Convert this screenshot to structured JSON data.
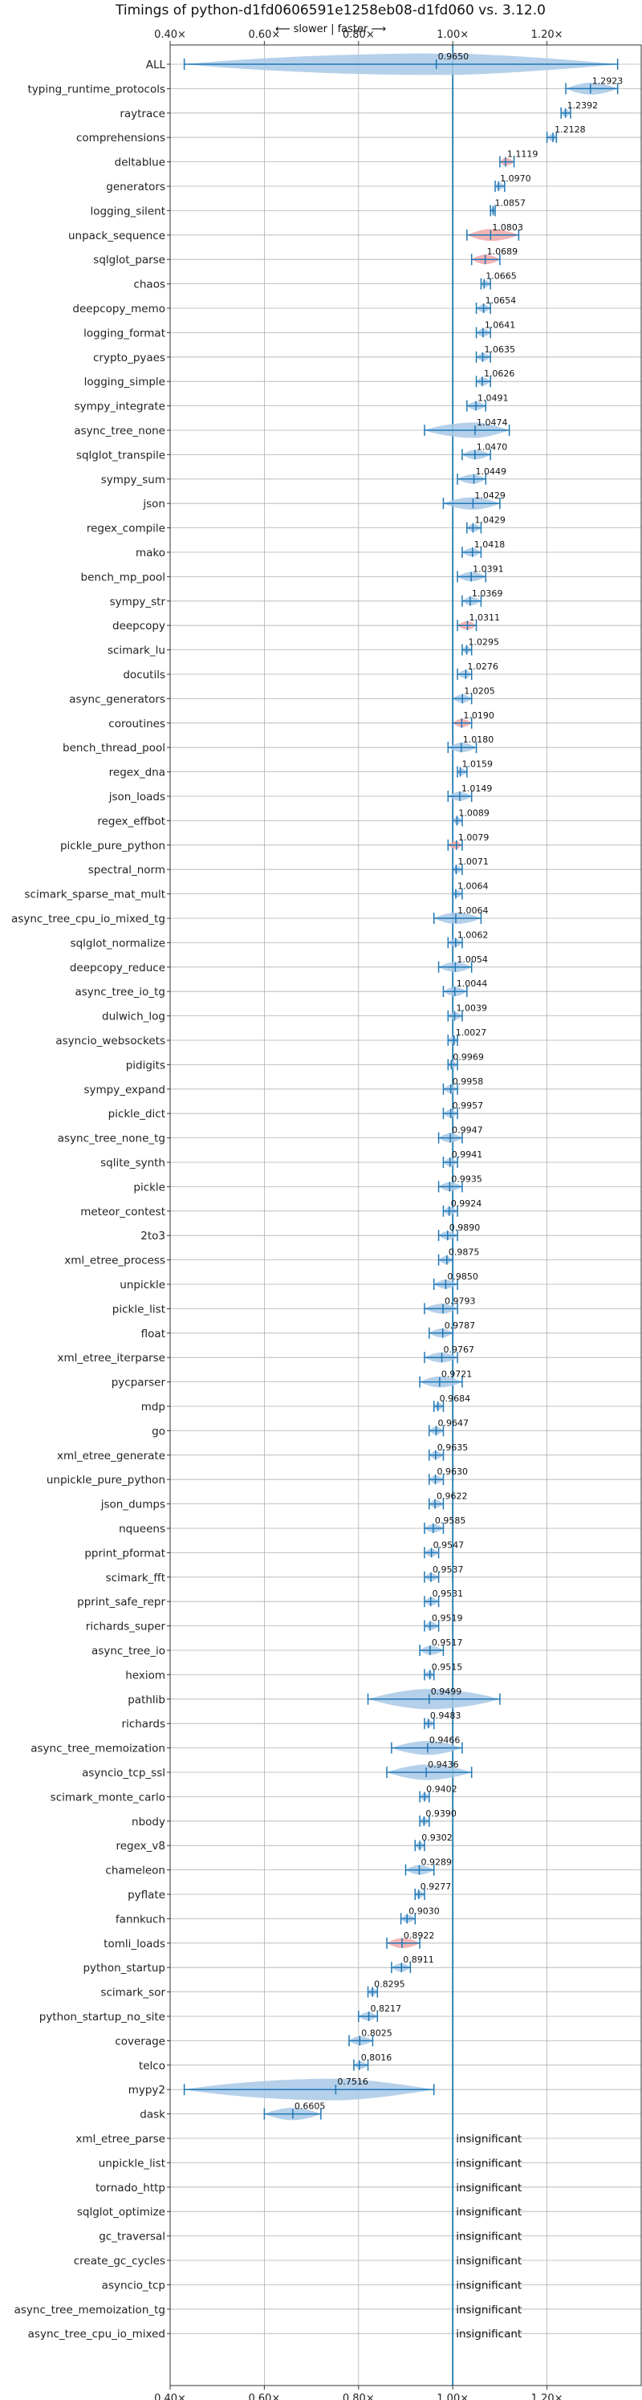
{
  "chart_data": {
    "type": "violin",
    "title": "Timings of python-d1fd0606591e1258eb08-d1fd060 vs. 3.12.0",
    "subtitle": "⟵ slower | faster ⟶",
    "xlim": [
      0.4,
      1.4
    ],
    "xticks": [
      "0.40×",
      "0.60×",
      "0.80×",
      "1.00×",
      "1.20×"
    ],
    "xtick_values": [
      0.4,
      0.6,
      0.8,
      1.0,
      1.2
    ],
    "reference_line": 1.0,
    "grid": true,
    "colors": {
      "violin": "#a8c8e6",
      "violin_bad": "#f2a7a7",
      "line": "#1f77b4"
    },
    "insignificant_label": "insignificant",
    "benchmarks": [
      {
        "name": "ALL",
        "value": 0.965,
        "low": 0.43,
        "high": 1.35
      },
      {
        "name": "typing_runtime_protocols",
        "value": 1.2923,
        "low": 1.24,
        "high": 1.35
      },
      {
        "name": "raytrace",
        "value": 1.2392,
        "low": 1.23,
        "high": 1.25
      },
      {
        "name": "comprehensions",
        "value": 1.2128,
        "low": 1.2,
        "high": 1.22
      },
      {
        "name": "deltablue",
        "value": 1.1119,
        "low": 1.1,
        "high": 1.13,
        "flag": true
      },
      {
        "name": "generators",
        "value": 1.097,
        "low": 1.09,
        "high": 1.11
      },
      {
        "name": "logging_silent",
        "value": 1.0857,
        "low": 1.08,
        "high": 1.09
      },
      {
        "name": "unpack_sequence",
        "value": 1.0803,
        "low": 1.03,
        "high": 1.14,
        "flag": true
      },
      {
        "name": "sqlglot_parse",
        "value": 1.0689,
        "low": 1.04,
        "high": 1.1,
        "flag": true
      },
      {
        "name": "chaos",
        "value": 1.0665,
        "low": 1.06,
        "high": 1.08
      },
      {
        "name": "deepcopy_memo",
        "value": 1.0654,
        "low": 1.05,
        "high": 1.08
      },
      {
        "name": "logging_format",
        "value": 1.0641,
        "low": 1.05,
        "high": 1.08
      },
      {
        "name": "crypto_pyaes",
        "value": 1.0635,
        "low": 1.05,
        "high": 1.08
      },
      {
        "name": "logging_simple",
        "value": 1.0626,
        "low": 1.05,
        "high": 1.08
      },
      {
        "name": "sympy_integrate",
        "value": 1.0491,
        "low": 1.03,
        "high": 1.07
      },
      {
        "name": "async_tree_none",
        "value": 1.0474,
        "low": 0.94,
        "high": 1.12
      },
      {
        "name": "sqlglot_transpile",
        "value": 1.047,
        "low": 1.02,
        "high": 1.08
      },
      {
        "name": "sympy_sum",
        "value": 1.0449,
        "low": 1.01,
        "high": 1.07
      },
      {
        "name": "json",
        "value": 1.0429,
        "low": 0.98,
        "high": 1.1
      },
      {
        "name": "regex_compile",
        "value": 1.0429,
        "low": 1.03,
        "high": 1.06
      },
      {
        "name": "mako",
        "value": 1.0418,
        "low": 1.02,
        "high": 1.06
      },
      {
        "name": "bench_mp_pool",
        "value": 1.0391,
        "low": 1.01,
        "high": 1.07
      },
      {
        "name": "sympy_str",
        "value": 1.0369,
        "low": 1.02,
        "high": 1.06
      },
      {
        "name": "deepcopy",
        "value": 1.0311,
        "low": 1.01,
        "high": 1.05,
        "flag": true
      },
      {
        "name": "scimark_lu",
        "value": 1.0295,
        "low": 1.02,
        "high": 1.04
      },
      {
        "name": "docutils",
        "value": 1.0276,
        "low": 1.01,
        "high": 1.04
      },
      {
        "name": "async_generators",
        "value": 1.0205,
        "low": 1.0,
        "high": 1.04
      },
      {
        "name": "coroutines",
        "value": 1.019,
        "low": 1.0,
        "high": 1.04,
        "flag": true
      },
      {
        "name": "bench_thread_pool",
        "value": 1.018,
        "low": 0.99,
        "high": 1.05
      },
      {
        "name": "regex_dna",
        "value": 1.0159,
        "low": 1.01,
        "high": 1.03
      },
      {
        "name": "json_loads",
        "value": 1.0149,
        "low": 0.99,
        "high": 1.04
      },
      {
        "name": "regex_effbot",
        "value": 1.0089,
        "low": 1.0,
        "high": 1.02
      },
      {
        "name": "pickle_pure_python",
        "value": 1.0079,
        "low": 0.99,
        "high": 1.02,
        "flag": true
      },
      {
        "name": "spectral_norm",
        "value": 1.0071,
        "low": 1.0,
        "high": 1.02
      },
      {
        "name": "scimark_sparse_mat_mult",
        "value": 1.0064,
        "low": 1.0,
        "high": 1.02
      },
      {
        "name": "async_tree_cpu_io_mixed_tg",
        "value": 1.0064,
        "low": 0.96,
        "high": 1.06
      },
      {
        "name": "sqlglot_normalize",
        "value": 1.0062,
        "low": 0.99,
        "high": 1.02
      },
      {
        "name": "deepcopy_reduce",
        "value": 1.0054,
        "low": 0.97,
        "high": 1.04
      },
      {
        "name": "async_tree_io_tg",
        "value": 1.0044,
        "low": 0.98,
        "high": 1.03
      },
      {
        "name": "dulwich_log",
        "value": 1.0039,
        "low": 0.99,
        "high": 1.02
      },
      {
        "name": "asyncio_websockets",
        "value": 1.0027,
        "low": 0.99,
        "high": 1.01
      },
      {
        "name": "pidigits",
        "value": 0.9969,
        "low": 0.99,
        "high": 1.01
      },
      {
        "name": "sympy_expand",
        "value": 0.9958,
        "low": 0.98,
        "high": 1.01
      },
      {
        "name": "pickle_dict",
        "value": 0.9957,
        "low": 0.98,
        "high": 1.01
      },
      {
        "name": "async_tree_none_tg",
        "value": 0.9947,
        "low": 0.97,
        "high": 1.02
      },
      {
        "name": "sqlite_synth",
        "value": 0.9941,
        "low": 0.98,
        "high": 1.01
      },
      {
        "name": "pickle",
        "value": 0.9935,
        "low": 0.97,
        "high": 1.02
      },
      {
        "name": "meteor_contest",
        "value": 0.9924,
        "low": 0.98,
        "high": 1.01
      },
      {
        "name": "2to3",
        "value": 0.989,
        "low": 0.97,
        "high": 1.01
      },
      {
        "name": "xml_etree_process",
        "value": 0.9875,
        "low": 0.97,
        "high": 1.0
      },
      {
        "name": "unpickle",
        "value": 0.985,
        "low": 0.96,
        "high": 1.01
      },
      {
        "name": "pickle_list",
        "value": 0.9793,
        "low": 0.94,
        "high": 1.01
      },
      {
        "name": "float",
        "value": 0.9787,
        "low": 0.95,
        "high": 1.0
      },
      {
        "name": "xml_etree_iterparse",
        "value": 0.9767,
        "low": 0.94,
        "high": 1.01
      },
      {
        "name": "pycparser",
        "value": 0.9721,
        "low": 0.93,
        "high": 1.02
      },
      {
        "name": "mdp",
        "value": 0.9684,
        "low": 0.96,
        "high": 0.98
      },
      {
        "name": "go",
        "value": 0.9647,
        "low": 0.95,
        "high": 0.98
      },
      {
        "name": "xml_etree_generate",
        "value": 0.9635,
        "low": 0.95,
        "high": 0.98
      },
      {
        "name": "unpickle_pure_python",
        "value": 0.963,
        "low": 0.95,
        "high": 0.98
      },
      {
        "name": "json_dumps",
        "value": 0.9622,
        "low": 0.95,
        "high": 0.98
      },
      {
        "name": "nqueens",
        "value": 0.9585,
        "low": 0.94,
        "high": 0.98
      },
      {
        "name": "pprint_pformat",
        "value": 0.9547,
        "low": 0.94,
        "high": 0.97
      },
      {
        "name": "scimark_fft",
        "value": 0.9537,
        "low": 0.94,
        "high": 0.97
      },
      {
        "name": "pprint_safe_repr",
        "value": 0.9531,
        "low": 0.94,
        "high": 0.97
      },
      {
        "name": "richards_super",
        "value": 0.9519,
        "low": 0.94,
        "high": 0.97
      },
      {
        "name": "async_tree_io",
        "value": 0.9517,
        "low": 0.93,
        "high": 0.98
      },
      {
        "name": "hexiom",
        "value": 0.9515,
        "low": 0.94,
        "high": 0.96
      },
      {
        "name": "pathlib",
        "value": 0.9499,
        "low": 0.82,
        "high": 1.1
      },
      {
        "name": "richards",
        "value": 0.9483,
        "low": 0.94,
        "high": 0.96
      },
      {
        "name": "async_tree_memoization",
        "value": 0.9466,
        "low": 0.87,
        "high": 1.02
      },
      {
        "name": "asyncio_tcp_ssl",
        "value": 0.9436,
        "low": 0.86,
        "high": 1.04
      },
      {
        "name": "scimark_monte_carlo",
        "value": 0.9402,
        "low": 0.93,
        "high": 0.95
      },
      {
        "name": "nbody",
        "value": 0.939,
        "low": 0.93,
        "high": 0.95
      },
      {
        "name": "regex_v8",
        "value": 0.9302,
        "low": 0.92,
        "high": 0.94
      },
      {
        "name": "chameleon",
        "value": 0.9289,
        "low": 0.9,
        "high": 0.96
      },
      {
        "name": "pyflate",
        "value": 0.9277,
        "low": 0.92,
        "high": 0.94
      },
      {
        "name": "fannkuch",
        "value": 0.903,
        "low": 0.89,
        "high": 0.92
      },
      {
        "name": "tomli_loads",
        "value": 0.8922,
        "low": 0.86,
        "high": 0.93,
        "flag": true
      },
      {
        "name": "python_startup",
        "value": 0.8911,
        "low": 0.87,
        "high": 0.91
      },
      {
        "name": "scimark_sor",
        "value": 0.8295,
        "low": 0.82,
        "high": 0.84
      },
      {
        "name": "python_startup_no_site",
        "value": 0.8217,
        "low": 0.8,
        "high": 0.84
      },
      {
        "name": "coverage",
        "value": 0.8025,
        "low": 0.78,
        "high": 0.83
      },
      {
        "name": "telco",
        "value": 0.8016,
        "low": 0.79,
        "high": 0.82
      },
      {
        "name": "mypy2",
        "value": 0.7516,
        "low": 0.43,
        "high": 0.96
      },
      {
        "name": "dask",
        "value": 0.6605,
        "low": 0.6,
        "high": 0.72
      },
      {
        "name": "xml_etree_parse",
        "insignificant": true
      },
      {
        "name": "unpickle_list",
        "insignificant": true
      },
      {
        "name": "tornado_http",
        "insignificant": true
      },
      {
        "name": "sqlglot_optimize",
        "insignificant": true
      },
      {
        "name": "gc_traversal",
        "insignificant": true
      },
      {
        "name": "create_gc_cycles",
        "insignificant": true
      },
      {
        "name": "asyncio_tcp",
        "insignificant": true
      },
      {
        "name": "async_tree_memoization_tg",
        "insignificant": true
      },
      {
        "name": "async_tree_cpu_io_mixed",
        "insignificant": true
      }
    ]
  }
}
